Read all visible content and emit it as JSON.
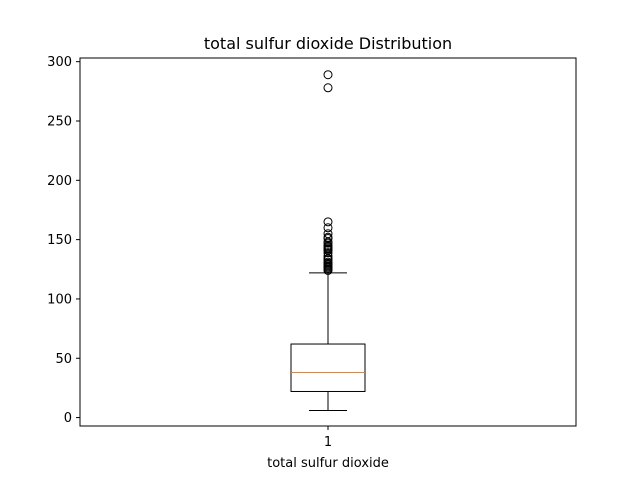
{
  "chart_data": {
    "type": "box",
    "title": "total sulfur dioxide Distribution",
    "xlabel": "total sulfur dioxide",
    "ylabel": "",
    "ylim": [
      -7.1,
      303.1
    ],
    "yticks": [
      0,
      50,
      100,
      150,
      200,
      250,
      300
    ],
    "categories": [
      "1"
    ],
    "series": [
      {
        "whisker_low": 6,
        "q1": 22,
        "median": 38,
        "q3": 62,
        "whisker_high": 122,
        "outliers": [
          124,
          125,
          126,
          127,
          128,
          129,
          130,
          131,
          133,
          134,
          136,
          139,
          141,
          142,
          143,
          144,
          145,
          147,
          148,
          151,
          152,
          155,
          160,
          165,
          278,
          289
        ]
      }
    ],
    "grid": false,
    "colors": {
      "box": "#000000",
      "median": "#ff7f0e",
      "outlier": "#000000"
    }
  }
}
